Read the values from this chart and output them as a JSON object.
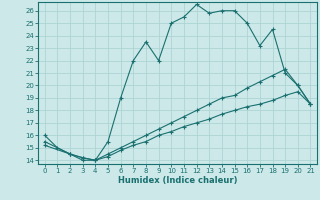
{
  "xlabel": "Humidex (Indice chaleur)",
  "bg_color": "#cce8e8",
  "grid_color": "#aed4d4",
  "line_color": "#1a7070",
  "xlim": [
    -0.5,
    21.5
  ],
  "ylim": [
    13.7,
    26.7
  ],
  "xticks": [
    0,
    1,
    2,
    3,
    4,
    5,
    6,
    7,
    8,
    9,
    10,
    11,
    12,
    13,
    14,
    15,
    16,
    17,
    18,
    19,
    20,
    21
  ],
  "yticks": [
    14,
    15,
    16,
    17,
    18,
    19,
    20,
    21,
    22,
    23,
    24,
    25,
    26
  ],
  "line1_x": [
    0,
    1,
    2,
    3,
    4,
    5,
    6,
    7,
    8,
    9,
    10,
    11,
    12,
    13,
    14,
    15,
    16,
    17,
    18,
    19,
    20,
    21
  ],
  "line1_y": [
    16.0,
    15.0,
    14.5,
    14.0,
    14.0,
    15.5,
    19.0,
    22.0,
    23.5,
    22.0,
    25.0,
    25.5,
    26.5,
    25.8,
    26.0,
    26.0,
    25.0,
    23.2,
    24.5,
    21.0,
    20.0,
    18.5
  ],
  "line2_x": [
    0,
    2,
    3,
    4,
    5,
    6,
    7,
    8,
    9,
    10,
    11,
    12,
    13,
    14,
    15,
    16,
    17,
    18,
    19,
    20,
    21
  ],
  "line2_y": [
    15.5,
    14.5,
    14.2,
    14.0,
    14.5,
    15.0,
    15.5,
    16.0,
    16.5,
    17.0,
    17.5,
    18.0,
    18.5,
    19.0,
    19.2,
    19.8,
    20.3,
    20.8,
    21.3,
    20.0,
    18.5
  ],
  "line3_x": [
    0,
    2,
    3,
    4,
    5,
    6,
    7,
    8,
    9,
    10,
    11,
    12,
    13,
    14,
    15,
    16,
    17,
    18,
    19,
    20,
    21
  ],
  "line3_y": [
    15.2,
    14.5,
    14.2,
    14.0,
    14.3,
    14.8,
    15.2,
    15.5,
    16.0,
    16.3,
    16.7,
    17.0,
    17.3,
    17.7,
    18.0,
    18.3,
    18.5,
    18.8,
    19.2,
    19.5,
    18.5
  ]
}
